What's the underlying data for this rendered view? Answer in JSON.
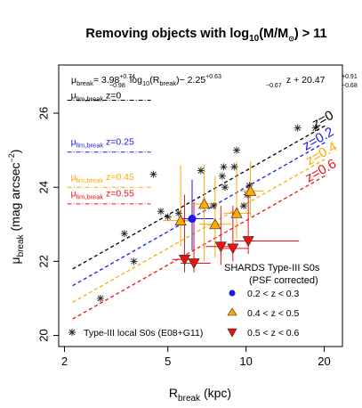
{
  "chart_data": {
    "type": "scatter",
    "title": {
      "prefix": "Removing objects with log",
      "sub": "10",
      "mid": "(M/M",
      "sun": "⊙",
      "suffix": ") > 11"
    },
    "xlabel": {
      "main": "R",
      "sub": "break",
      "unit": " (kpc)"
    },
    "ylabel": {
      "main": "μ",
      "sub": "break",
      "unit": " (mag arcsec",
      "sup": "−2",
      "close": ")"
    },
    "xscale": "log",
    "xlim": [
      1.9,
      23.5
    ],
    "ylim": [
      19.7,
      27.3
    ],
    "xticks": [
      2,
      5,
      10,
      20
    ],
    "yticks": [
      20,
      22,
      24,
      26
    ],
    "equation": {
      "mu": "μ",
      "mu_sub": "break",
      "eq": "= 3.98",
      "c1_sup": "+0.74",
      "c1_sub": "−0.98",
      "log": " log",
      "log_sub": "10",
      "r": "(R",
      "r_sub": "break",
      "r_close": ")− 2.25",
      "c2_sup": "+0.63",
      "c2_sub": "−0.67",
      "z": " z + 20.47",
      "c3_sup": "+0.91",
      "c3_sub": "−0.68"
    },
    "fit": {
      "slope": 3.98,
      "z_coef": -2.25,
      "intercept": 20.47
    },
    "fit_lines": [
      {
        "label": "z=0",
        "z": 0.0,
        "color": "#000000",
        "label_x": 18.5
      },
      {
        "label": "z=0.2",
        "z": 0.2,
        "color": "#1a1aee",
        "label_x": 17.0
      },
      {
        "label": "z=0.4",
        "z": 0.4,
        "color": "#ffaa00",
        "label_x": 17.5
      },
      {
        "label": "z=0.6",
        "z": 0.6,
        "color": "#ee1111",
        "label_x": 17.4
      }
    ],
    "mu_lim": [
      {
        "mu": "μ",
        "sub": "lim,break",
        "z": " z=0",
        "color": "#000000",
        "y": 26.35,
        "label_y": 26.4,
        "x_range": [
          2.05,
          4.3
        ]
      },
      {
        "mu": "μ",
        "sub": "lim,break",
        "z": " z=0.25",
        "color": "#1a1aee",
        "y": 24.95,
        "label_y": 25.15,
        "x_range": [
          2.05,
          4.3
        ]
      },
      {
        "mu": "μ",
        "sub": "lim,break",
        "z": " z=0.45",
        "color": "#ffaa00",
        "y": 24.0,
        "label_y": 24.2,
        "x_range": [
          2.05,
          4.3
        ]
      },
      {
        "mu": "μ",
        "sub": "lim,break",
        "z": " z=0.55",
        "color": "#ee1111",
        "y": 23.55,
        "label_y": 23.75,
        "x_range": [
          2.05,
          4.3
        ]
      }
    ],
    "series": [
      {
        "name": "Type-III local S0s (E08+G11)",
        "marker": "asterisk",
        "color": "#222222",
        "points": [
          [
            2.75,
            21.0
          ],
          [
            3.4,
            22.75
          ],
          [
            3.7,
            22.0
          ],
          [
            4.4,
            24.35
          ],
          [
            4.7,
            23.35
          ],
          [
            5.0,
            23.2
          ],
          [
            5.5,
            23.3
          ],
          [
            6.7,
            24.45
          ],
          [
            7.5,
            23.5
          ],
          [
            8.1,
            24.3
          ],
          [
            8.2,
            24.55
          ],
          [
            8.3,
            24.0
          ],
          [
            9.0,
            24.55
          ],
          [
            9.2,
            25.0
          ],
          [
            9.8,
            23.5
          ],
          [
            10.1,
            23.8
          ],
          [
            10.3,
            24.05
          ],
          [
            15.8,
            25.6
          ],
          [
            18.5,
            25.6
          ]
        ]
      },
      {
        "name": "0.2 < z < 0.3",
        "marker": "circle",
        "color": "#1a1aee",
        "points": [
          {
            "x": 6.2,
            "y": 23.15,
            "xerr": [
              5.5,
              7.5
            ],
            "yerr": [
              22.3,
              24.2
            ]
          }
        ]
      },
      {
        "name": "0.4 < z < 0.5",
        "marker": "triangle-up",
        "color": "#ffaa00",
        "points": [
          {
            "x": 5.6,
            "y": 23.1,
            "xerr": [
              4.8,
              6.4
            ],
            "yerr": [
              22.4,
              24.6
            ]
          },
          {
            "x": 6.9,
            "y": 23.55,
            "xerr": [
              6.2,
              7.8
            ],
            "yerr": [
              22.0,
              24.6
            ]
          },
          {
            "x": 7.6,
            "y": 23.0,
            "xerr": [
              6.6,
              8.8
            ],
            "yerr": [
              22.1,
              24.3
            ]
          },
          {
            "x": 9.2,
            "y": 23.3,
            "xerr": [
              8.2,
              10.4
            ],
            "yerr": [
              22.6,
              24.7
            ]
          },
          {
            "x": 10.4,
            "y": 23.9,
            "xerr": [
              9.5,
              11.7
            ],
            "yerr": [
              23.2,
              24.7
            ]
          }
        ]
      },
      {
        "name": "0.5 < z < 0.6",
        "marker": "triangle-down",
        "color": "#ee1111",
        "points": [
          {
            "x": 5.8,
            "y": 22.05,
            "xerr": [
              5.2,
              6.6
            ],
            "yerr": [
              21.7,
              23.8
            ]
          },
          {
            "x": 6.3,
            "y": 21.95,
            "xerr": [
              5.6,
              7.3
            ],
            "yerr": [
              21.7,
              23.6
            ]
          },
          {
            "x": 8.0,
            "y": 22.4,
            "xerr": [
              7.0,
              9.2
            ],
            "yerr": [
              21.9,
              23.5
            ]
          },
          {
            "x": 8.9,
            "y": 22.35,
            "xerr": [
              8.0,
              10.2
            ],
            "yerr": [
              22.0,
              23.5
            ]
          },
          {
            "x": 10.2,
            "y": 22.55,
            "xerr": [
              9.0,
              16.0
            ],
            "yerr": [
              22.2,
              24.0
            ]
          }
        ]
      }
    ],
    "legend": {
      "title_line1": "SHARDS Type-III S0s",
      "title_line2": "(PSF corrected)",
      "placement": "bottom-right",
      "local_label": "Type-III local S0s (E08+G11)",
      "local_placement": "bottom-left"
    }
  }
}
